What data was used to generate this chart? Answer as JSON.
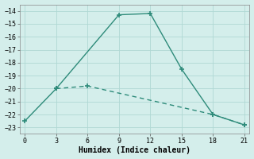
{
  "line1_x": [
    0,
    3,
    9,
    12,
    15,
    18,
    21
  ],
  "line1_y": [
    -22.5,
    -20.0,
    -14.3,
    -14.2,
    -18.5,
    -22.0,
    -22.8
  ],
  "line2_x": [
    3,
    6,
    18,
    21
  ],
  "line2_y": [
    -20.0,
    -19.8,
    -22.0,
    -22.8
  ],
  "color": "#2e8b7a",
  "bg_color": "#d4eeeb",
  "grid_color": "#b0d8d4",
  "xlabel": "Humidex (Indice chaleur)",
  "xlim": [
    -0.5,
    21.5
  ],
  "ylim": [
    -23.5,
    -13.5
  ],
  "xticks": [
    0,
    3,
    6,
    9,
    12,
    15,
    18,
    21
  ],
  "yticks": [
    -14,
    -15,
    -16,
    -17,
    -18,
    -19,
    -20,
    -21,
    -22,
    -23
  ],
  "marker": "+"
}
